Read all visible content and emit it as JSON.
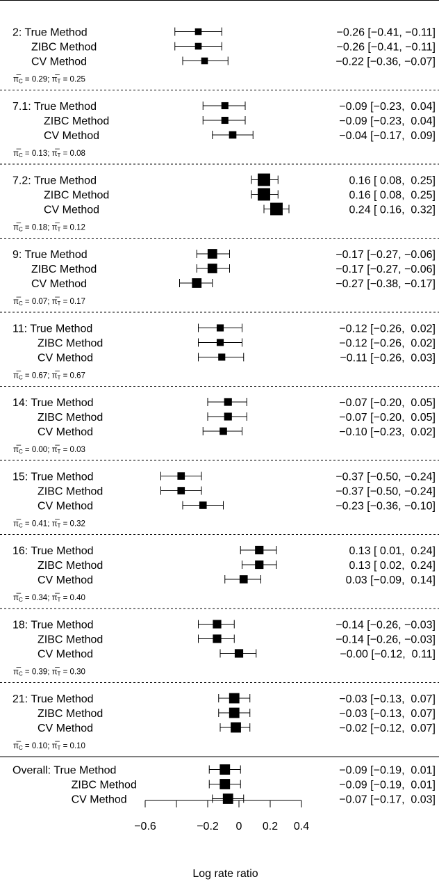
{
  "chart_data": {
    "type": "forest",
    "xlabel": "Log rate ratio",
    "xlim": [
      -0.6,
      0.4
    ],
    "x_ticks": [
      -0.6,
      -0.4,
      -0.2,
      0,
      0.2,
      0.4
    ],
    "x_tick_labels": [
      "−0.6",
      "",
      "−0.2",
      "0",
      "0.2",
      "0.4"
    ],
    "methods": [
      "True Method",
      "ZIBC Method",
      "CV Method"
    ],
    "studies": [
      {
        "id": "2",
        "pi_c": "0.29",
        "pi_t": "0.25",
        "rows": [
          {
            "method": "True Method",
            "est": -0.26,
            "lo": -0.41,
            "hi": -0.11,
            "weight": 1.0,
            "ci_text": "−0.26 [−0.41, −0.11]"
          },
          {
            "method": "ZIBC Method",
            "est": -0.26,
            "lo": -0.41,
            "hi": -0.11,
            "weight": 1.0,
            "ci_text": "−0.26 [−0.41, −0.11]"
          },
          {
            "method": "CV Method",
            "est": -0.22,
            "lo": -0.36,
            "hi": -0.07,
            "weight": 1.0,
            "ci_text": "−0.22 [−0.36, −0.07]"
          }
        ]
      },
      {
        "id": "7.1",
        "pi_c": "0.13",
        "pi_t": "0.08",
        "rows": [
          {
            "method": "True Method",
            "est": -0.09,
            "lo": -0.23,
            "hi": 0.04,
            "weight": 1.1,
            "ci_text": "−0.09 [−0.23,  0.04]"
          },
          {
            "method": "ZIBC Method",
            "est": -0.09,
            "lo": -0.23,
            "hi": 0.04,
            "weight": 1.1,
            "ci_text": "−0.09 [−0.23,  0.04]"
          },
          {
            "method": "CV Method",
            "est": -0.04,
            "lo": -0.17,
            "hi": 0.09,
            "weight": 1.2,
            "ci_text": "−0.04 [−0.17,  0.09]"
          }
        ]
      },
      {
        "id": "7.2",
        "pi_c": "0.18",
        "pi_t": "0.12",
        "rows": [
          {
            "method": "True Method",
            "est": 0.16,
            "lo": 0.08,
            "hi": 0.25,
            "weight": 2.6,
            "ci_text": "0.16 [ 0.08,  0.25]"
          },
          {
            "method": "ZIBC Method",
            "est": 0.16,
            "lo": 0.08,
            "hi": 0.25,
            "weight": 2.6,
            "ci_text": "0.16 [ 0.08,  0.25]"
          },
          {
            "method": "CV Method",
            "est": 0.24,
            "lo": 0.16,
            "hi": 0.32,
            "weight": 2.6,
            "ci_text": "0.24 [ 0.16,  0.32]"
          }
        ]
      },
      {
        "id": "9",
        "pi_c": "0.07",
        "pi_t": "0.17",
        "rows": [
          {
            "method": "True Method",
            "est": -0.17,
            "lo": -0.27,
            "hi": -0.06,
            "weight": 1.8,
            "ci_text": "−0.17 [−0.27, −0.06]"
          },
          {
            "method": "ZIBC Method",
            "est": -0.17,
            "lo": -0.27,
            "hi": -0.06,
            "weight": 1.8,
            "ci_text": "−0.17 [−0.27, −0.06]"
          },
          {
            "method": "CV Method",
            "est": -0.27,
            "lo": -0.38,
            "hi": -0.17,
            "weight": 1.8,
            "ci_text": "−0.27 [−0.38, −0.17]"
          }
        ]
      },
      {
        "id": "11",
        "pi_c": "0.67",
        "pi_t": "0.67",
        "rows": [
          {
            "method": "True Method",
            "est": -0.12,
            "lo": -0.26,
            "hi": 0.02,
            "weight": 1.1,
            "ci_text": "−0.12 [−0.26,  0.02]"
          },
          {
            "method": "ZIBC Method",
            "est": -0.12,
            "lo": -0.26,
            "hi": 0.02,
            "weight": 1.1,
            "ci_text": "−0.12 [−0.26,  0.02]"
          },
          {
            "method": "CV Method",
            "est": -0.11,
            "lo": -0.26,
            "hi": 0.03,
            "weight": 1.1,
            "ci_text": "−0.11 [−0.26,  0.03]"
          }
        ]
      },
      {
        "id": "14",
        "pi_c": "0.00",
        "pi_t": "0.03",
        "rows": [
          {
            "method": "True Method",
            "est": -0.07,
            "lo": -0.2,
            "hi": 0.05,
            "weight": 1.3,
            "ci_text": "−0.07 [−0.20,  0.05]"
          },
          {
            "method": "ZIBC Method",
            "est": -0.07,
            "lo": -0.2,
            "hi": 0.05,
            "weight": 1.3,
            "ci_text": "−0.07 [−0.20,  0.05]"
          },
          {
            "method": "CV Method",
            "est": -0.1,
            "lo": -0.23,
            "hi": 0.02,
            "weight": 1.2,
            "ci_text": "−0.10 [−0.23,  0.02]"
          }
        ]
      },
      {
        "id": "15",
        "pi_c": "0.41",
        "pi_t": "0.32",
        "rows": [
          {
            "method": "True Method",
            "est": -0.37,
            "lo": -0.5,
            "hi": -0.24,
            "weight": 1.2,
            "ci_text": "−0.37 [−0.50, −0.24]"
          },
          {
            "method": "ZIBC Method",
            "est": -0.37,
            "lo": -0.5,
            "hi": -0.24,
            "weight": 1.2,
            "ci_text": "−0.37 [−0.50, −0.24]"
          },
          {
            "method": "CV Method",
            "est": -0.23,
            "lo": -0.36,
            "hi": -0.1,
            "weight": 1.2,
            "ci_text": "−0.23 [−0.36, −0.10]"
          }
        ]
      },
      {
        "id": "16",
        "pi_c": "0.34",
        "pi_t": "0.40",
        "rows": [
          {
            "method": "True Method",
            "est": 0.13,
            "lo": 0.01,
            "hi": 0.24,
            "weight": 1.5,
            "ci_text": "0.13 [ 0.01,  0.24]"
          },
          {
            "method": "ZIBC Method",
            "est": 0.13,
            "lo": 0.02,
            "hi": 0.24,
            "weight": 1.5,
            "ci_text": "0.13 [ 0.02,  0.24]"
          },
          {
            "method": "CV Method",
            "est": 0.03,
            "lo": -0.09,
            "hi": 0.14,
            "weight": 1.4,
            "ci_text": "0.03 [−0.09,  0.14]"
          }
        ]
      },
      {
        "id": "18",
        "pi_c": "0.39",
        "pi_t": "0.30",
        "rows": [
          {
            "method": "True Method",
            "est": -0.14,
            "lo": -0.26,
            "hi": -0.03,
            "weight": 1.5,
            "ci_text": "−0.14 [−0.26, −0.03]"
          },
          {
            "method": "ZIBC Method",
            "est": -0.14,
            "lo": -0.26,
            "hi": -0.03,
            "weight": 1.5,
            "ci_text": "−0.14 [−0.26, −0.03]"
          },
          {
            "method": "CV Method",
            "est": 0.0,
            "lo": -0.12,
            "hi": 0.11,
            "weight": 1.5,
            "ci_text": "−0.00 [−0.12,  0.11]"
          }
        ]
      },
      {
        "id": "21",
        "pi_c": "0.10",
        "pi_t": "0.10",
        "rows": [
          {
            "method": "True Method",
            "est": -0.03,
            "lo": -0.13,
            "hi": 0.07,
            "weight": 2.0,
            "ci_text": "−0.03 [−0.13,  0.07]"
          },
          {
            "method": "ZIBC Method",
            "est": -0.03,
            "lo": -0.13,
            "hi": 0.07,
            "weight": 2.0,
            "ci_text": "−0.03 [−0.13,  0.07]"
          },
          {
            "method": "CV Method",
            "est": -0.02,
            "lo": -0.12,
            "hi": 0.07,
            "weight": 2.0,
            "ci_text": "−0.02 [−0.12,  0.07]"
          }
        ]
      }
    ],
    "overall": {
      "id": "Overall",
      "rows": [
        {
          "method": "True Method",
          "est": -0.09,
          "lo": -0.19,
          "hi": 0.01,
          "weight": 2.0,
          "ci_text": "−0.09 [−0.19,  0.01]"
        },
        {
          "method": "ZIBC Method",
          "est": -0.09,
          "lo": -0.19,
          "hi": 0.01,
          "weight": 2.0,
          "ci_text": "−0.09 [−0.19,  0.01]"
        },
        {
          "method": "CV Method",
          "est": -0.07,
          "lo": -0.17,
          "hi": 0.03,
          "weight": 2.0,
          "ci_text": "−0.07 [−0.17,  0.03]"
        }
      ]
    }
  }
}
